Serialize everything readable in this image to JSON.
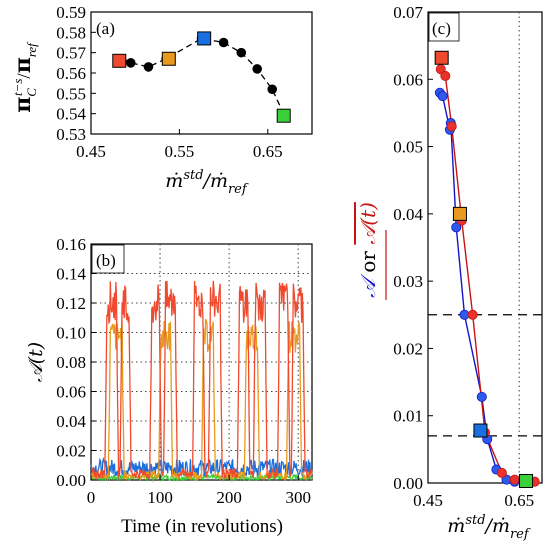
{
  "colors": {
    "red": "#f04a2e",
    "orange": "#e89a1e",
    "blue": "#1a6fe0",
    "green": "#3ad03a",
    "black": "#000000",
    "dark_red": "#c81414",
    "dark_blue": "#1414c8"
  },
  "chart_data": [
    {
      "panel": "(a)",
      "type": "scatter",
      "title": "",
      "xlabel": "ṁstd/ṁref",
      "ylabel": "πC t−s/πref",
      "xlim": [
        0.45,
        0.7
      ],
      "ylim": [
        0.53,
        0.59
      ],
      "xticks": [
        "0.45",
        "0.55",
        "0.65"
      ],
      "yticks": [
        "0.53",
        "0.54",
        "0.55",
        "0.56",
        "0.57",
        "0.58",
        "0.59"
      ],
      "grid": false,
      "series": [
        {
          "marker": "circle",
          "color": "black",
          "line": "dashed",
          "x": [
            0.485,
            0.495,
            0.515,
            0.535,
            0.575,
            0.6,
            0.62,
            0.638,
            0.655,
            0.67
          ],
          "y": [
            0.566,
            0.565,
            0.563,
            0.567,
            0.577,
            0.575,
            0.57,
            0.562,
            0.552,
            0.538
          ]
        },
        {
          "marker": "square",
          "points": [
            {
              "x": 0.482,
              "y": 0.566,
              "color": "red"
            },
            {
              "x": 0.538,
              "y": 0.567,
              "color": "orange"
            },
            {
              "x": 0.578,
              "y": 0.577,
              "color": "blue"
            },
            {
              "x": 0.668,
              "y": 0.539,
              "color": "green"
            }
          ]
        }
      ]
    },
    {
      "panel": "(b)",
      "type": "line",
      "title": "",
      "xlabel": "Time (in revolutions)",
      "ylabel": "𝒜(t)",
      "xlim": [
        0,
        320
      ],
      "ylim": [
        0,
        0.16
      ],
      "xticks": [
        "0",
        "100",
        "200",
        "300"
      ],
      "yticks": [
        "0.00",
        "0.02",
        "0.04",
        "0.06",
        "0.08",
        "0.10",
        "0.12",
        "0.14",
        "0.16"
      ],
      "grid": true,
      "series": [
        {
          "color": "red",
          "bursts": [
            [
              20,
              40
            ],
            [
              42,
              58
            ],
            [
              85,
              102
            ],
            [
              105,
              125
            ],
            [
              147,
              165
            ],
            [
              170,
              190
            ],
            [
              212,
              230
            ],
            [
              235,
              255
            ],
            [
              270,
              288
            ],
            [
              290,
              310
            ]
          ],
          "peak": 0.13,
          "base": 0.003
        },
        {
          "color": "orange",
          "bursts": [
            [
              25,
              48
            ],
            [
              98,
              118
            ],
            [
              160,
              180
            ],
            [
              222,
              244
            ],
            [
              283,
              305
            ]
          ],
          "peak": 0.105,
          "base": 0.002
        },
        {
          "color": "blue",
          "bursts": [],
          "peak": 0,
          "base": 0.006
        },
        {
          "color": "green",
          "bursts": [],
          "peak": 0,
          "base": 0.001
        }
      ]
    },
    {
      "panel": "(c)",
      "type": "line",
      "title": "",
      "xlabel": "ṁstd/ṁref",
      "ylabel": "𝒜 or 𝒜(t)",
      "xlim": [
        0.45,
        0.7
      ],
      "ylim": [
        0,
        0.07
      ],
      "xticks": [
        "0.45",
        "0.65"
      ],
      "yticks": [
        "0.00",
        "0.01",
        "0.02",
        "0.03",
        "0.04",
        "0.05",
        "0.06",
        "0.07"
      ],
      "hlines": [
        0.025,
        0.007
      ],
      "vline": 0.65,
      "series": [
        {
          "color": "dark_blue",
          "marker": "circle",
          "x": [
            0.476,
            0.482,
            0.498,
            0.5,
            0.512,
            0.53,
            0.568,
            0.58,
            0.6,
            0.622,
            0.64
          ],
          "y": [
            0.058,
            0.0575,
            0.0525,
            0.0535,
            0.038,
            0.025,
            0.0128,
            0.0065,
            0.002,
            0.0005,
            0.0002
          ]
        },
        {
          "color": "dark_red",
          "marker": "circle",
          "x": [
            0.478,
            0.488,
            0.502,
            0.524,
            0.548,
            0.575,
            0.612,
            0.64,
            0.684
          ],
          "y": [
            0.0615,
            0.0605,
            0.053,
            0.039,
            0.025,
            0.0075,
            0.0015,
            0.0005,
            0.0002
          ]
        },
        {
          "marker": "square",
          "points": [
            {
              "x": 0.48,
              "y": 0.0632,
              "color": "red"
            },
            {
              "x": 0.52,
              "y": 0.04,
              "color": "orange"
            },
            {
              "x": 0.565,
              "y": 0.0078,
              "color": "blue"
            },
            {
              "x": 0.665,
              "y": 0.0003,
              "color": "green"
            }
          ]
        }
      ]
    }
  ]
}
